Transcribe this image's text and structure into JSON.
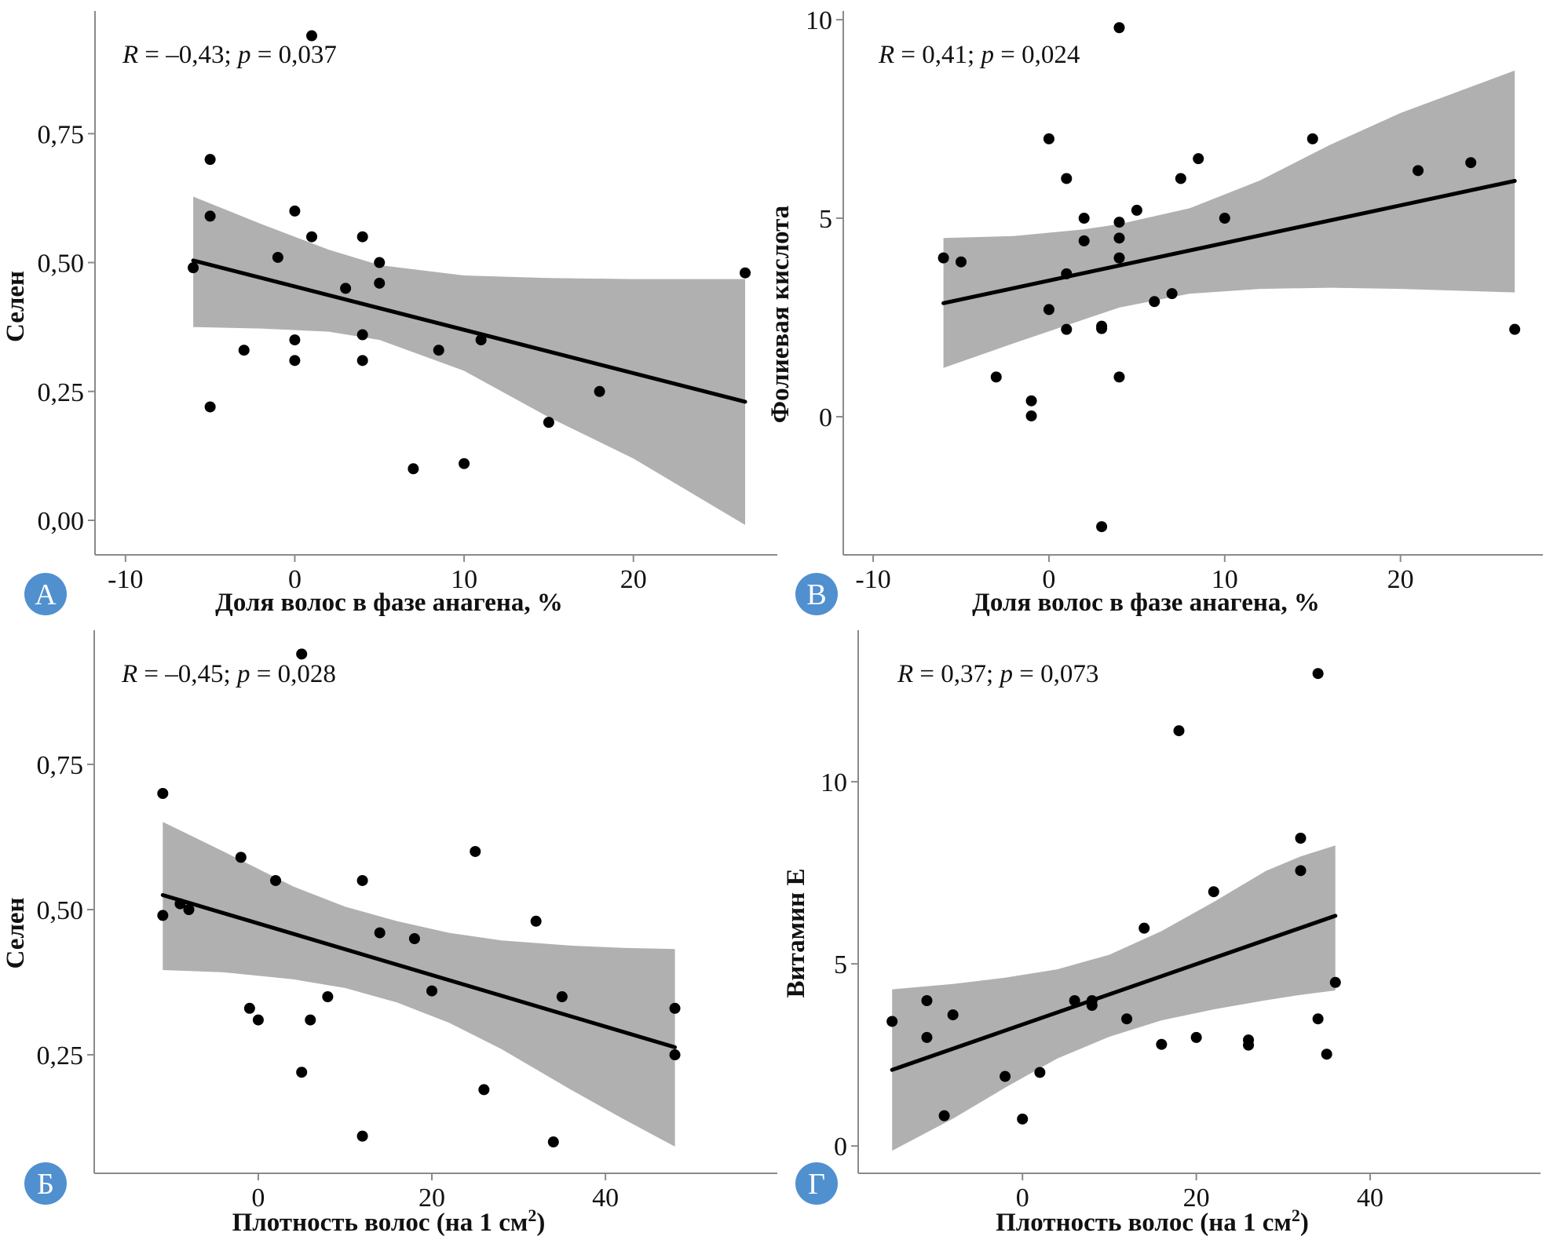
{
  "chart_data": [
    {
      "id": "A",
      "type": "scatter",
      "badge": "А",
      "badge_color": "#5090cf",
      "annotation": {
        "r_label": "R",
        "r_text": " = –0,43; ",
        "p_label": "p",
        "p_text": " = 0,037"
      },
      "xlabel": "Доля волос в фазе анагена, %",
      "ylabel": "Селен",
      "xlim": [
        -11.8,
        28.5
      ],
      "ylim": [
        -0.067,
        0.988
      ],
      "xticks": [
        {
          "v": -10,
          "label": "-10"
        },
        {
          "v": 0,
          "label": "0"
        },
        {
          "v": 10,
          "label": "10"
        },
        {
          "v": 20,
          "label": "20"
        }
      ],
      "yticks": [
        {
          "v": 0,
          "label": "0,00"
        },
        {
          "v": 0.25,
          "label": "0,25"
        },
        {
          "v": 0.5,
          "label": "0,50"
        },
        {
          "v": 0.75,
          "label": "0,75"
        }
      ],
      "points": [
        [
          1,
          0.94
        ],
        [
          -5,
          0.7
        ],
        [
          -5,
          0.59
        ],
        [
          -6,
          0.49
        ],
        [
          -1,
          0.51
        ],
        [
          0,
          0.6
        ],
        [
          1,
          0.55
        ],
        [
          4,
          0.55
        ],
        [
          5,
          0.5
        ],
        [
          5,
          0.46
        ],
        [
          3,
          0.45
        ],
        [
          4,
          0.36
        ],
        [
          0,
          0.35
        ],
        [
          -3,
          0.33
        ],
        [
          0,
          0.31
        ],
        [
          4,
          0.31
        ],
        [
          8.5,
          0.33
        ],
        [
          11,
          0.35
        ],
        [
          -5,
          0.22
        ],
        [
          18,
          0.25
        ],
        [
          15,
          0.19
        ],
        [
          7,
          0.1
        ],
        [
          10,
          0.11
        ],
        [
          26.6,
          0.48
        ]
      ],
      "fit_line": [
        [
          -6,
          0.504
        ],
        [
          26.6,
          0.23
        ]
      ],
      "ci_band": {
        "x": [
          -6,
          -2,
          2,
          5,
          10,
          15,
          20,
          26.6
        ],
        "upper": [
          0.628,
          0.575,
          0.525,
          0.495,
          0.475,
          0.47,
          0.468,
          0.468
        ],
        "lower": [
          0.375,
          0.372,
          0.366,
          0.35,
          0.29,
          0.2,
          0.12,
          -0.009
        ]
      }
    },
    {
      "id": "B",
      "type": "scatter",
      "badge": "В",
      "badge_color": "#5090cf",
      "annotation": {
        "r_label": "R",
        "r_text": " = 0,41; ",
        "p_label": "p",
        "p_text": " = 0,024"
      },
      "xlabel": "Доля волос в фазе анагена, %",
      "ylabel": "Фолиевая кислота",
      "xlim": [
        -11.7,
        28.1
      ],
      "ylim": [
        -3.48,
        10.22
      ],
      "xticks": [
        {
          "v": -10,
          "label": "-10"
        },
        {
          "v": 0,
          "label": "0"
        },
        {
          "v": 10,
          "label": "10"
        },
        {
          "v": 20,
          "label": "20"
        }
      ],
      "yticks": [
        {
          "v": 0,
          "label": "0"
        },
        {
          "v": 5,
          "label": "5"
        },
        {
          "v": 10,
          "label": "10"
        }
      ],
      "points": [
        [
          4,
          9.8
        ],
        [
          0,
          7.0
        ],
        [
          15,
          7.0
        ],
        [
          8.5,
          6.5
        ],
        [
          24,
          6.4
        ],
        [
          21,
          6.2
        ],
        [
          1,
          6.0
        ],
        [
          7.5,
          6.0
        ],
        [
          5,
          5.2
        ],
        [
          2,
          5.0
        ],
        [
          10,
          5.0
        ],
        [
          4,
          4.9
        ],
        [
          4,
          4.5
        ],
        [
          2,
          4.43
        ],
        [
          -6,
          4.0
        ],
        [
          4,
          4.0
        ],
        [
          -5,
          3.9
        ],
        [
          1,
          3.6
        ],
        [
          7,
          3.1
        ],
        [
          6,
          2.9
        ],
        [
          0,
          2.7
        ],
        [
          1,
          2.2
        ],
        [
          3,
          2.28
        ],
        [
          3,
          2.22
        ],
        [
          26.5,
          2.2
        ],
        [
          -3,
          1.0
        ],
        [
          4,
          1.0
        ],
        [
          -1,
          0.4
        ],
        [
          -1,
          0.02
        ],
        [
          3,
          -2.77
        ]
      ],
      "fit_line": [
        [
          -6,
          2.86
        ],
        [
          26.5,
          5.94
        ]
      ],
      "ci_band": {
        "x": [
          -6,
          -2,
          2,
          4,
          8,
          12,
          16,
          20,
          26.5
        ],
        "upper": [
          4.5,
          4.55,
          4.72,
          4.85,
          5.25,
          5.95,
          6.85,
          7.65,
          8.72
        ],
        "lower": [
          1.23,
          1.85,
          2.45,
          2.75,
          3.1,
          3.22,
          3.25,
          3.22,
          3.13
        ]
      }
    },
    {
      "id": "Б",
      "type": "scatter",
      "badge": "Б",
      "badge_color": "#5090cf",
      "annotation": {
        "r_label": "R",
        "r_text": " = –0,45; ",
        "p_label": "p",
        "p_text": " = 0,028"
      },
      "xlabel": "Плотность волос (на 1 см",
      "xlabel_sup": "2",
      "xlabel_end": ")",
      "ylabel": "Селен",
      "xlim": [
        -18.9,
        59.8
      ],
      "ylim": [
        0.046,
        0.981
      ],
      "xticks": [
        {
          "v": 0,
          "label": "0"
        },
        {
          "v": 20,
          "label": "20"
        },
        {
          "v": 40,
          "label": "40"
        }
      ],
      "yticks": [
        {
          "v": 0.25,
          "label": "0,25"
        },
        {
          "v": 0.5,
          "label": "0,50"
        },
        {
          "v": 0.75,
          "label": "0,75"
        }
      ],
      "points": [
        [
          5,
          0.94
        ],
        [
          -11,
          0.7
        ],
        [
          25,
          0.6
        ],
        [
          -2,
          0.59
        ],
        [
          2,
          0.55
        ],
        [
          12,
          0.55
        ],
        [
          -11,
          0.49
        ],
        [
          -9,
          0.51
        ],
        [
          -8,
          0.5
        ],
        [
          32,
          0.48
        ],
        [
          14,
          0.46
        ],
        [
          18,
          0.45
        ],
        [
          20,
          0.36
        ],
        [
          8,
          0.35
        ],
        [
          35,
          0.35
        ],
        [
          -1,
          0.33
        ],
        [
          48,
          0.33
        ],
        [
          0,
          0.31
        ],
        [
          6,
          0.31
        ],
        [
          48,
          0.25
        ],
        [
          5,
          0.22
        ],
        [
          26,
          0.19
        ],
        [
          12,
          0.11
        ],
        [
          34,
          0.1
        ]
      ],
      "fit_line": [
        [
          -11,
          0.525
        ],
        [
          48,
          0.263
        ]
      ],
      "ci_band": {
        "x": [
          -11,
          -4,
          4,
          10,
          16,
          22,
          28,
          36,
          42,
          48
        ],
        "upper": [
          0.651,
          0.6,
          0.54,
          0.505,
          0.48,
          0.46,
          0.447,
          0.438,
          0.434,
          0.432
        ],
        "lower": [
          0.396,
          0.392,
          0.38,
          0.365,
          0.34,
          0.305,
          0.26,
          0.19,
          0.14,
          0.092
        ]
      }
    },
    {
      "id": "Г",
      "type": "scatter",
      "badge": "Г",
      "badge_color": "#5090cf",
      "annotation": {
        "r_label": "R",
        "r_text": " = 0,37; ",
        "p_label": "p",
        "p_text": " = 0,073"
      },
      "xlabel": "Плотность волос (на 1 см",
      "xlabel_sup": "2",
      "xlabel_end": ")",
      "ylabel": "Витамин Е",
      "xlim": [
        -18.9,
        59.6
      ],
      "ylim": [
        -0.75,
        14.16
      ],
      "xticks": [
        {
          "v": 0,
          "label": "0"
        },
        {
          "v": 20,
          "label": "20"
        },
        {
          "v": 40,
          "label": "40"
        }
      ],
      "yticks": [
        {
          "v": 0,
          "label": "0"
        },
        {
          "v": 5,
          "label": "5"
        },
        {
          "v": 10,
          "label": "10"
        }
      ],
      "points": [
        [
          34,
          12.97
        ],
        [
          18,
          11.4
        ],
        [
          32,
          8.45
        ],
        [
          32,
          7.56
        ],
        [
          22,
          6.98
        ],
        [
          14,
          5.98
        ],
        [
          36,
          4.49
        ],
        [
          -11,
          3.99
        ],
        [
          6,
          3.99
        ],
        [
          8,
          3.99
        ],
        [
          8,
          3.86
        ],
        [
          -8,
          3.6
        ],
        [
          -15,
          3.42
        ],
        [
          12,
          3.49
        ],
        [
          34,
          3.49
        ],
        [
          -11,
          2.98
        ],
        [
          20,
          2.98
        ],
        [
          26,
          2.91
        ],
        [
          26,
          2.77
        ],
        [
          16,
          2.79
        ],
        [
          35,
          2.52
        ],
        [
          -2,
          1.91
        ],
        [
          2,
          2.02
        ],
        [
          -9,
          0.83
        ],
        [
          0,
          0.74
        ]
      ],
      "fit_line": [
        [
          -15,
          2.09
        ],
        [
          36,
          6.32
        ]
      ],
      "ci_band": {
        "x": [
          -15,
          -8,
          -2,
          4,
          10,
          16,
          22,
          28,
          32,
          36
        ],
        "upper": [
          4.3,
          4.45,
          4.62,
          4.85,
          5.25,
          5.9,
          6.7,
          7.55,
          7.95,
          8.25
        ],
        "lower": [
          -0.13,
          0.75,
          1.6,
          2.4,
          3.0,
          3.45,
          3.75,
          4.0,
          4.15,
          4.27
        ]
      }
    }
  ]
}
